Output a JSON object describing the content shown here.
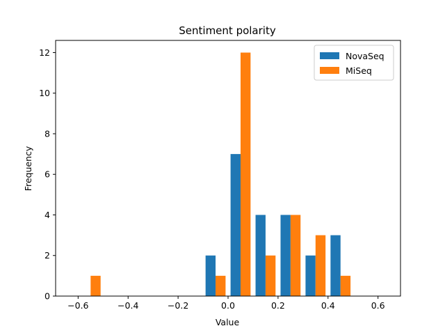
{
  "chart_data": {
    "type": "bar",
    "title": "Sentiment polarity",
    "xlabel": "Value",
    "ylabel": "Frequency",
    "xlim": [
      -0.69,
      0.69
    ],
    "ylim": [
      0,
      12.6
    ],
    "xticks": [
      -0.6,
      -0.4,
      -0.2,
      0.0,
      0.2,
      0.4,
      0.6
    ],
    "xtick_labels": [
      "−0.6",
      "−0.4",
      "−0.2",
      "0.0",
      "0.2",
      "0.4",
      "0.6"
    ],
    "yticks": [
      0,
      2,
      4,
      6,
      8,
      10,
      12
    ],
    "ytick_labels": [
      "0",
      "2",
      "4",
      "6",
      "8",
      "10",
      "12"
    ],
    "bins": [
      [
        -0.6,
        -0.5
      ],
      [
        -0.5,
        -0.4
      ],
      [
        -0.4,
        -0.3
      ],
      [
        -0.3,
        -0.2
      ],
      [
        -0.2,
        -0.1
      ],
      [
        -0.1,
        0.0
      ],
      [
        0.0,
        0.1
      ],
      [
        0.1,
        0.2
      ],
      [
        0.2,
        0.3
      ],
      [
        0.3,
        0.4
      ],
      [
        0.4,
        0.5
      ],
      [
        0.5,
        0.6
      ]
    ],
    "series": [
      {
        "name": "NovaSeq",
        "color": "#1f77b4",
        "values": [
          0,
          0,
          0,
          0,
          0,
          2,
          7,
          4,
          4,
          2,
          3,
          0
        ]
      },
      {
        "name": "MiSeq",
        "color": "#ff7f0e",
        "values": [
          1,
          0,
          0,
          0,
          0,
          1,
          12,
          2,
          4,
          3,
          1,
          0
        ]
      }
    ],
    "grid": false,
    "legend_position": "top-right"
  }
}
